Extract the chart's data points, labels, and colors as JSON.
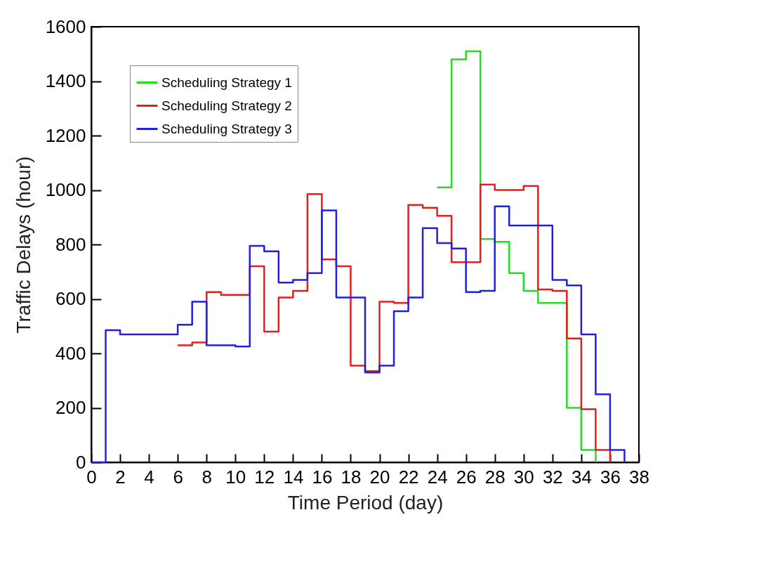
{
  "chart_data": {
    "type": "step",
    "xlabel": "Time Period (day)",
    "ylabel": "Traffic Delays (hour)",
    "xlim": [
      0,
      38
    ],
    "xticks": [
      0,
      2,
      4,
      6,
      8,
      10,
      12,
      14,
      16,
      18,
      20,
      22,
      24,
      26,
      28,
      30,
      32,
      34,
      36,
      38
    ],
    "ylim": [
      0,
      1600
    ],
    "yticks": [
      0,
      200,
      400,
      600,
      800,
      1000,
      1200,
      1400,
      1600
    ],
    "grid": false,
    "legend": "top left",
    "marker": "none",
    "line_style": "solid",
    "series": [
      {
        "name": "Scheduling Strategy 1",
        "color": "#22dd22",
        "x": [
          24,
          25,
          26,
          27,
          28,
          29,
          30,
          31,
          32,
          33,
          34,
          35
        ],
        "values": [
          1010,
          1480,
          1510,
          820,
          810,
          695,
          630,
          585,
          585,
          200,
          45,
          0
        ]
      },
      {
        "name": "Scheduling Strategy 2",
        "color": "#e02020",
        "x": [
          6,
          7,
          8,
          9,
          10,
          11,
          12,
          13,
          14,
          15,
          16,
          17,
          18,
          19,
          20,
          21,
          22,
          23,
          24,
          25,
          26,
          27,
          28,
          29,
          30,
          31,
          32,
          33,
          34,
          35,
          36
        ],
        "values": [
          430,
          440,
          625,
          615,
          615,
          720,
          480,
          605,
          630,
          985,
          745,
          720,
          355,
          335,
          590,
          585,
          945,
          935,
          905,
          735,
          735,
          1020,
          1000,
          1000,
          1015,
          635,
          630,
          455,
          195,
          45,
          0
        ]
      },
      {
        "name": "Scheduling Strategy 3",
        "color": "#2020dd",
        "x": [
          0,
          1,
          2,
          3,
          4,
          5,
          6,
          7,
          8,
          9,
          10,
          11,
          12,
          13,
          14,
          15,
          16,
          17,
          18,
          19,
          20,
          21,
          22,
          23,
          24,
          25,
          26,
          27,
          28,
          29,
          30,
          31,
          32,
          33,
          34,
          35,
          36,
          37
        ],
        "values": [
          0,
          485,
          470,
          470,
          470,
          470,
          505,
          590,
          430,
          430,
          425,
          795,
          775,
          660,
          670,
          695,
          925,
          605,
          605,
          330,
          355,
          555,
          605,
          860,
          805,
          785,
          625,
          630,
          940,
          870,
          870,
          870,
          670,
          650,
          470,
          250,
          45,
          0
        ]
      }
    ]
  }
}
